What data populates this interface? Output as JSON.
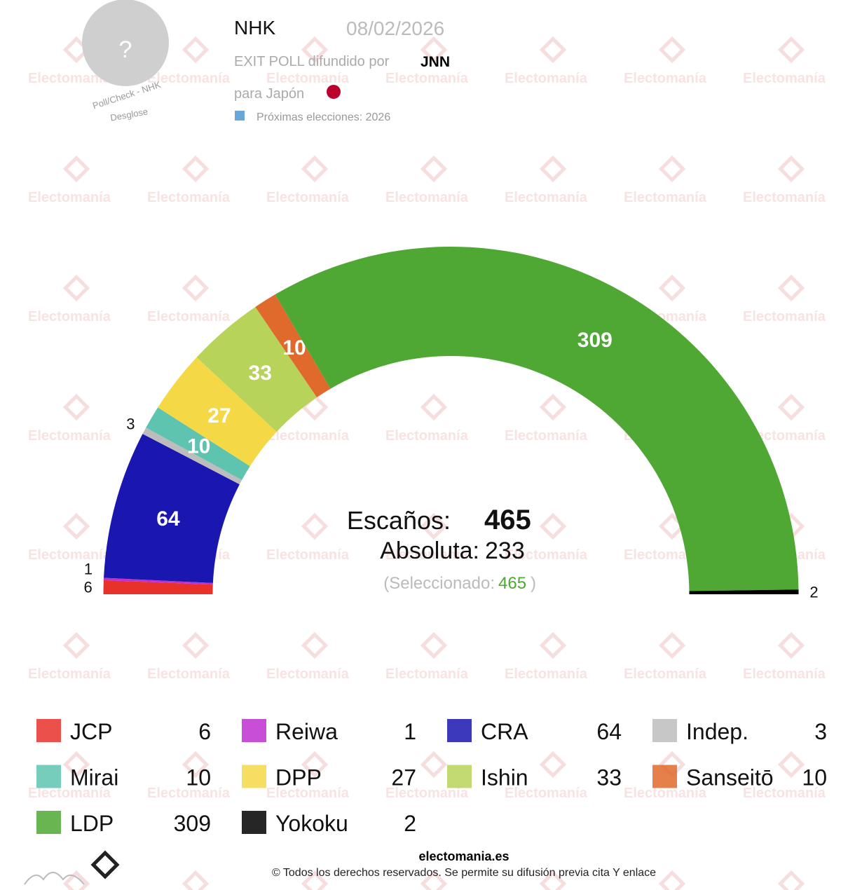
{
  "header": {
    "avatar": "?",
    "pollster": "NHK",
    "date": "08/02/2026",
    "exit_poll": "EXIT POLL difundido por",
    "media": "JNN",
    "country": "para Japón",
    "next": "Próximas elecciones: 2026",
    "curve_top": "Poll/Check - NHK",
    "curve_bottom": "Desglose"
  },
  "watermark": "Electomanía",
  "chart_data": {
    "type": "parliament",
    "total_label": "Escaños:",
    "total": 465,
    "majority_label": "Absoluta:",
    "majority": 233,
    "selected_label": "(Seleccionado:",
    "selected": 465,
    "selected_close": ")",
    "categories": [
      "JCP",
      "Reiwa",
      "CRA",
      "Indep.",
      "Mirai",
      "DPP",
      "Ishin",
      "Sanseitō",
      "LDP",
      "Yokoku"
    ],
    "values": [
      6,
      1,
      64,
      3,
      10,
      27,
      33,
      10,
      309,
      2
    ],
    "colors": [
      "#e8312a",
      "#c02fd0",
      "#1a16b0",
      "#bdbdbd",
      "#5ec4b0",
      "#f5d846",
      "#b8d35a",
      "#e06a2c",
      "#4ea833",
      "#000000"
    ]
  },
  "footer": {
    "site": "electomania.es",
    "rights": "© Todos los derechos reservados. Se permite su difusión previa cita Y enlace"
  }
}
